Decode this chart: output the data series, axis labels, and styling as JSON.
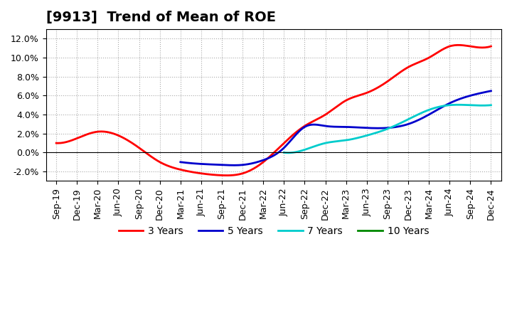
{
  "title": "[9913]  Trend of Mean of ROE",
  "ylabel": "",
  "ylim": [
    -0.03,
    0.13
  ],
  "yticks": [
    -0.02,
    0.0,
    0.02,
    0.04,
    0.06,
    0.08,
    0.1,
    0.12
  ],
  "background_color": "#ffffff",
  "grid_color": "#aaaaaa",
  "x_labels": [
    "Sep-19",
    "Dec-19",
    "Mar-20",
    "Jun-20",
    "Sep-20",
    "Dec-20",
    "Mar-21",
    "Jun-21",
    "Sep-21",
    "Dec-21",
    "Mar-22",
    "Jun-22",
    "Sep-22",
    "Dec-22",
    "Mar-23",
    "Jun-23",
    "Sep-23",
    "Dec-23",
    "Mar-24",
    "Jun-24",
    "Sep-24",
    "Dec-24"
  ],
  "series": {
    "3 Years": {
      "color": "#ff0000",
      "data_x": [
        0,
        1,
        2,
        3,
        4,
        5,
        6,
        7,
        8,
        9,
        10,
        11,
        12,
        13,
        14,
        15,
        16,
        17,
        18,
        19,
        20,
        21
      ],
      "data_y": [
        0.01,
        0.015,
        0.022,
        0.018,
        0.005,
        -0.01,
        -0.018,
        -0.022,
        -0.024,
        -0.022,
        -0.01,
        0.01,
        0.028,
        0.04,
        0.055,
        0.063,
        0.075,
        0.09,
        0.1,
        0.112,
        0.112,
        0.112
      ]
    },
    "5 Years": {
      "color": "#0000cc",
      "data_x": [
        0,
        1,
        2,
        3,
        4,
        5,
        6,
        7,
        8,
        9,
        10,
        11,
        12,
        13,
        14,
        15,
        16,
        17,
        18,
        19,
        20,
        21
      ],
      "data_y": [
        null,
        null,
        null,
        null,
        null,
        null,
        -0.01,
        -0.012,
        -0.013,
        -0.013,
        -0.008,
        0.005,
        0.027,
        0.028,
        0.027,
        0.026,
        0.026,
        0.03,
        0.04,
        0.052,
        0.06,
        0.065
      ]
    },
    "7 Years": {
      "color": "#00cccc",
      "data_x": [
        0,
        1,
        2,
        3,
        4,
        5,
        6,
        7,
        8,
        9,
        10,
        11,
        12,
        13,
        14,
        15,
        16,
        17,
        18,
        19,
        20,
        21
      ],
      "data_y": [
        null,
        null,
        null,
        null,
        null,
        null,
        null,
        null,
        null,
        null,
        null,
        0.0,
        0.003,
        0.01,
        0.013,
        0.018,
        0.025,
        0.035,
        0.045,
        0.05,
        0.05,
        0.05
      ]
    },
    "10 Years": {
      "color": "#008800",
      "data_x": [
        0,
        1,
        2,
        3,
        4,
        5,
        6,
        7,
        8,
        9,
        10,
        11,
        12,
        13,
        14,
        15,
        16,
        17,
        18,
        19,
        20,
        21
      ],
      "data_y": [
        null,
        null,
        null,
        null,
        null,
        null,
        null,
        null,
        null,
        null,
        null,
        null,
        null,
        null,
        null,
        null,
        null,
        null,
        null,
        null,
        null,
        null
      ]
    }
  },
  "legend_order": [
    "3 Years",
    "5 Years",
    "7 Years",
    "10 Years"
  ],
  "title_fontsize": 14,
  "tick_fontsize": 9,
  "legend_fontsize": 10
}
